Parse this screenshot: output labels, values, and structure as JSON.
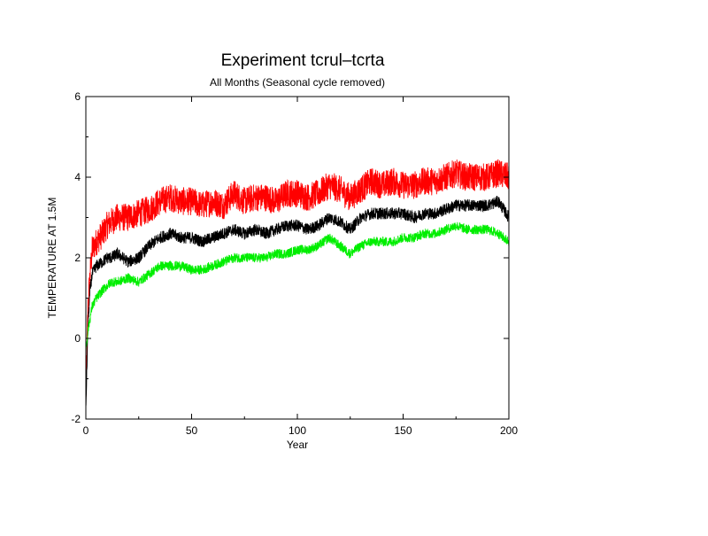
{
  "chart_data": {
    "type": "line",
    "title": "Experiment tcrul–tcrta",
    "subtitle": "All Months (Seasonal cycle removed)",
    "xlabel": "Year",
    "ylabel": "TEMPERATURE AT 1.5M",
    "xlim": [
      0,
      200
    ],
    "ylim": [
      -2,
      6
    ],
    "xticks": [
      0,
      50,
      100,
      150,
      200
    ],
    "yticks": [
      -2,
      0,
      2,
      4,
      6
    ],
    "grid": false,
    "legend": "none",
    "series": [
      {
        "color": "#ff0000",
        "x": [
          0,
          1,
          2,
          3,
          5,
          8,
          10,
          12,
          15,
          20,
          25,
          30,
          35,
          40,
          45,
          50,
          55,
          60,
          65,
          70,
          75,
          80,
          85,
          90,
          95,
          100,
          105,
          110,
          115,
          120,
          125,
          130,
          135,
          140,
          145,
          150,
          155,
          160,
          165,
          170,
          175,
          180,
          185,
          190,
          195,
          200
        ],
        "values": [
          -1.5,
          0.8,
          1.6,
          2.2,
          2.4,
          2.6,
          2.8,
          2.9,
          3.0,
          3.0,
          3.1,
          3.2,
          3.4,
          3.5,
          3.4,
          3.4,
          3.3,
          3.4,
          3.3,
          3.6,
          3.4,
          3.5,
          3.5,
          3.4,
          3.6,
          3.6,
          3.5,
          3.6,
          3.8,
          3.7,
          3.5,
          3.7,
          3.9,
          3.8,
          3.9,
          3.8,
          3.8,
          3.9,
          3.9,
          4.0,
          4.1,
          4.0,
          4.0,
          4.0,
          4.1,
          4.0
        ],
        "noise": 0.35
      },
      {
        "color": "#000000",
        "x": [
          0,
          1,
          2,
          3,
          5,
          8,
          10,
          12,
          15,
          20,
          25,
          30,
          35,
          40,
          45,
          50,
          55,
          60,
          65,
          70,
          75,
          80,
          85,
          90,
          95,
          100,
          105,
          110,
          115,
          120,
          125,
          130,
          135,
          140,
          145,
          150,
          155,
          160,
          165,
          170,
          175,
          180,
          185,
          190,
          195,
          200
        ],
        "values": [
          -1.8,
          0.3,
          1.2,
          1.6,
          1.8,
          1.9,
          2.0,
          2.0,
          2.1,
          1.9,
          2.0,
          2.3,
          2.5,
          2.6,
          2.5,
          2.5,
          2.4,
          2.5,
          2.6,
          2.7,
          2.6,
          2.7,
          2.6,
          2.7,
          2.8,
          2.8,
          2.7,
          2.8,
          3.0,
          2.9,
          2.7,
          3.0,
          3.1,
          3.1,
          3.1,
          3.1,
          3.0,
          3.1,
          3.1,
          3.2,
          3.3,
          3.3,
          3.3,
          3.3,
          3.4,
          3.0
        ],
        "noise": 0.15
      },
      {
        "color": "#00ee00",
        "x": [
          0,
          1,
          2,
          3,
          5,
          8,
          10,
          12,
          15,
          20,
          25,
          30,
          35,
          40,
          45,
          50,
          55,
          60,
          65,
          70,
          75,
          80,
          85,
          90,
          95,
          100,
          105,
          110,
          115,
          120,
          125,
          130,
          135,
          140,
          145,
          150,
          155,
          160,
          165,
          170,
          175,
          180,
          185,
          190,
          195,
          200
        ],
        "values": [
          -0.3,
          0.2,
          0.5,
          0.8,
          1.0,
          1.2,
          1.3,
          1.4,
          1.4,
          1.5,
          1.4,
          1.6,
          1.8,
          1.8,
          1.8,
          1.7,
          1.7,
          1.8,
          1.9,
          2.0,
          2.0,
          2.0,
          2.0,
          2.1,
          2.1,
          2.2,
          2.2,
          2.3,
          2.5,
          2.3,
          2.1,
          2.3,
          2.4,
          2.4,
          2.4,
          2.5,
          2.5,
          2.6,
          2.6,
          2.7,
          2.8,
          2.7,
          2.7,
          2.7,
          2.6,
          2.4
        ],
        "noise": 0.12
      }
    ]
  }
}
